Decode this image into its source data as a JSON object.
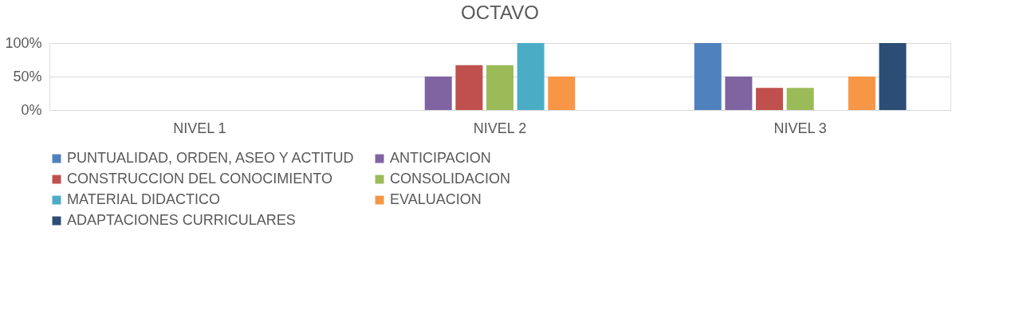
{
  "chart_data": {
    "type": "bar",
    "title": "OCTAVO",
    "categories": [
      "NIVEL 1",
      "NIVEL 2",
      "NIVEL 3"
    ],
    "series": [
      {
        "name": "PUNTUALIDAD, ORDEN, ASEO Y ACTITUD",
        "color": "#4f81bd",
        "values": [
          0,
          0,
          100
        ]
      },
      {
        "name": "ANTICIPACION",
        "color": "#8064a2",
        "values": [
          0,
          50,
          50
        ]
      },
      {
        "name": "CONSTRUCCION DEL CONOCIMIENTO",
        "color": "#c0504d",
        "values": [
          0,
          67,
          33
        ]
      },
      {
        "name": "CONSOLIDACION",
        "color": "#9bbb59",
        "values": [
          0,
          67,
          33
        ]
      },
      {
        "name": "MATERIAL DIDACTICO",
        "color": "#4bacc6",
        "values": [
          0,
          100,
          0
        ]
      },
      {
        "name": "EVALUACION",
        "color": "#f79646",
        "values": [
          0,
          50,
          50
        ]
      },
      {
        "name": "ADAPTACIONES CURRICULARES",
        "color": "#2c4d75",
        "values": [
          0,
          0,
          100
        ]
      }
    ],
    "ylim": [
      0,
      100
    ],
    "yticks": [
      {
        "value": 0,
        "label": "0%"
      },
      {
        "value": 50,
        "label": "50%"
      },
      {
        "value": 100,
        "label": "100%"
      }
    ],
    "grid": "y",
    "legend": "bottom"
  }
}
